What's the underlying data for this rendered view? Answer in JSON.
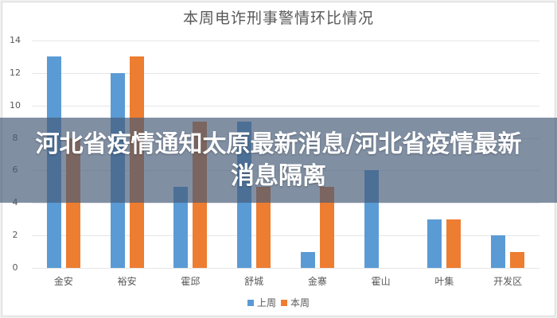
{
  "chart_data": {
    "type": "bar",
    "title": "本周电诈刑事警情环比情况",
    "categories": [
      "金安",
      "裕安",
      "霍邱",
      "舒城",
      "金寨",
      "霍山",
      "叶集",
      "开发区"
    ],
    "series": [
      {
        "name": "上周",
        "color": "#5b9bd5",
        "values": [
          13,
          12,
          5,
          9,
          1,
          6,
          3,
          2
        ]
      },
      {
        "name": "本周",
        "color": "#ed7d31",
        "values": [
          8,
          13,
          9,
          5,
          5,
          0,
          3,
          1
        ]
      }
    ],
    "xlabel": "",
    "ylabel": "",
    "ylim": [
      0,
      14
    ],
    "yticks": [
      "0",
      "2",
      "4",
      "6",
      "8",
      "10",
      "12",
      "14"
    ],
    "grid": true,
    "legend_position": "bottom"
  },
  "overlay": {
    "headline": "河北省疫情通知太原最新消息/河北省疫情最新消息隔离"
  }
}
